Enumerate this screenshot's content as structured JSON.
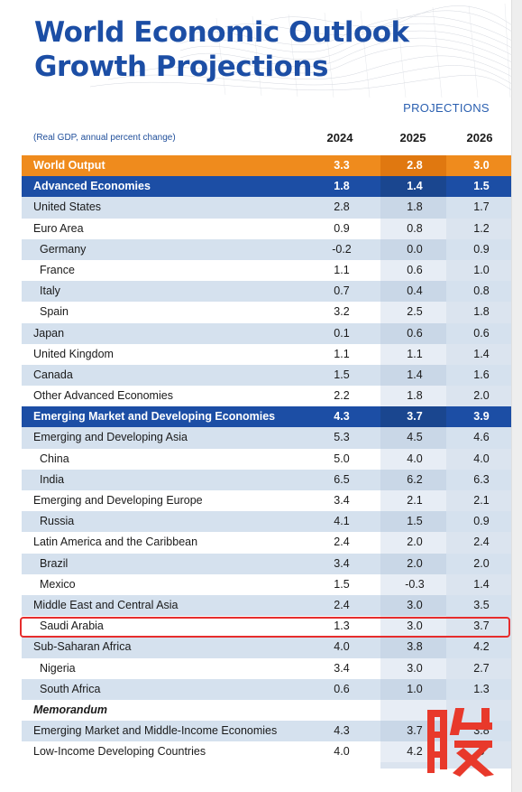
{
  "title": {
    "line1": "World Economic Outlook",
    "line2": "Growth Projections"
  },
  "projections_label": "PROJECTIONS",
  "subtitle": "(Real GDP, annual percent change)",
  "years": [
    "2024",
    "2025",
    "2026"
  ],
  "rows": [
    {
      "label": "World Output",
      "values": [
        "3.3",
        "2.8",
        "3.0"
      ],
      "style": "world"
    },
    {
      "label": "Advanced Economies",
      "values": [
        "1.8",
        "1.4",
        "1.5"
      ],
      "style": "group"
    },
    {
      "label": "United States",
      "values": [
        "2.8",
        "1.8",
        "1.7"
      ],
      "style": "band"
    },
    {
      "label": "Euro Area",
      "values": [
        "0.9",
        "0.8",
        "1.2"
      ],
      "style": "plain"
    },
    {
      "label": "Germany",
      "values": [
        "-0.2",
        "0.0",
        "0.9"
      ],
      "style": "band",
      "indent": true
    },
    {
      "label": "France",
      "values": [
        "1.1",
        "0.6",
        "1.0"
      ],
      "style": "plain",
      "indent": true
    },
    {
      "label": "Italy",
      "values": [
        "0.7",
        "0.4",
        "0.8"
      ],
      "style": "band",
      "indent": true
    },
    {
      "label": "Spain",
      "values": [
        "3.2",
        "2.5",
        "1.8"
      ],
      "style": "plain",
      "indent": true
    },
    {
      "label": "Japan",
      "values": [
        "0.1",
        "0.6",
        "0.6"
      ],
      "style": "band"
    },
    {
      "label": "United Kingdom",
      "values": [
        "1.1",
        "1.1",
        "1.4"
      ],
      "style": "plain"
    },
    {
      "label": "Canada",
      "values": [
        "1.5",
        "1.4",
        "1.6"
      ],
      "style": "band"
    },
    {
      "label": "Other Advanced Economies",
      "values": [
        "2.2",
        "1.8",
        "2.0"
      ],
      "style": "plain"
    },
    {
      "label": "Emerging Market and Developing Economies",
      "values": [
        "4.3",
        "3.7",
        "3.9"
      ],
      "style": "group"
    },
    {
      "label": "Emerging and Developing Asia",
      "values": [
        "5.3",
        "4.5",
        "4.6"
      ],
      "style": "band"
    },
    {
      "label": "China",
      "values": [
        "5.0",
        "4.0",
        "4.0"
      ],
      "style": "plain",
      "indent": true
    },
    {
      "label": "India",
      "values": [
        "6.5",
        "6.2",
        "6.3"
      ],
      "style": "band",
      "indent": true
    },
    {
      "label": "Emerging and Developing Europe",
      "values": [
        "3.4",
        "2.1",
        "2.1"
      ],
      "style": "plain"
    },
    {
      "label": "Russia",
      "values": [
        "4.1",
        "1.5",
        "0.9"
      ],
      "style": "band",
      "indent": true
    },
    {
      "label": "Latin America and the Caribbean",
      "values": [
        "2.4",
        "2.0",
        "2.4"
      ],
      "style": "plain"
    },
    {
      "label": "Brazil",
      "values": [
        "3.4",
        "2.0",
        "2.0"
      ],
      "style": "band",
      "indent": true
    },
    {
      "label": "Mexico",
      "values": [
        "1.5",
        "-0.3",
        "1.4"
      ],
      "style": "plain",
      "indent": true
    },
    {
      "label": "Middle East and Central Asia",
      "values": [
        "2.4",
        "3.0",
        "3.5"
      ],
      "style": "band"
    },
    {
      "label": "Saudi Arabia",
      "values": [
        "1.3",
        "3.0",
        "3.7"
      ],
      "style": "plain",
      "indent": true
    },
    {
      "label": "Sub-Saharan Africa",
      "values": [
        "4.0",
        "3.8",
        "4.2"
      ],
      "style": "band"
    },
    {
      "label": "Nigeria",
      "values": [
        "3.4",
        "3.0",
        "2.7"
      ],
      "style": "plain",
      "indent": true
    },
    {
      "label": "South Africa",
      "values": [
        "0.6",
        "1.0",
        "1.3"
      ],
      "style": "band",
      "indent": true
    },
    {
      "label": "Memorandum",
      "values": [
        "",
        "",
        ""
      ],
      "style": "plain",
      "memo": true
    },
    {
      "label": "Emerging Market and Middle-Income Economies",
      "values": [
        "4.3",
        "3.7",
        "3.8"
      ],
      "style": "band"
    },
    {
      "label": "Low-Income Developing Countries",
      "values": [
        "4.0",
        "4.2",
        "5"
      ],
      "style": "plain"
    }
  ],
  "highlighted_row": "Saudi Arabia",
  "colors": {
    "title_blue": "#1c4ea5",
    "world_orange": "#ef8b1d",
    "group_blue": "#1c4ea5",
    "band": "#d5e1ee",
    "highlight_red": "#e62d2d"
  },
  "watermark_glyph": "股"
}
